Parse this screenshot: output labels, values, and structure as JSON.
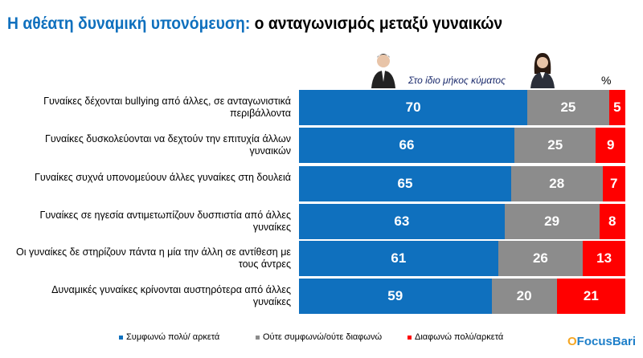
{
  "title": {
    "part1": "Η αθέατη δυναμική υπονόμευση:",
    "part2": "ο ανταγωνισμός μεταξύ γυναικών"
  },
  "subtitle": "Στο ίδιο μήκος κύματος",
  "unit": "%",
  "logo": "FocusBari",
  "chart_data": {
    "type": "bar",
    "orientation": "horizontal",
    "stacked": true,
    "xlim": [
      0,
      100
    ],
    "categories": [
      "Γυναίκες δέχονται bullying από άλλες, σε ανταγωνιστικά περιβάλλοντα",
      "Γυναίκες δυσκολεύονται να δεχτούν την επιτυχία άλλων γυναικών",
      "Γυναίκες συχνά υπονομεύουν άλλες γυναίκες στη δουλειά",
      "Γυναίκες σε ηγεσία αντιμετωπίζουν δυσπιστία από άλλες γυναίκες",
      "Οι γυναίκες δε στηρίζουν πάντα η μία την άλλη σε αντίθεση με τους άντρες",
      "Δυναμικές γυναίκες κρίνονται αυστηρότερα από άλλες γυναίκες"
    ],
    "series": [
      {
        "name": "Συμφωνώ πολύ/ αρκετά",
        "color": "#0f70be",
        "values": [
          70,
          66,
          65,
          63,
          61,
          59
        ]
      },
      {
        "name": "Ούτε συμφωνώ/ούτε διαφωνώ",
        "color": "#8c8c8c",
        "values": [
          25,
          25,
          28,
          29,
          26,
          20
        ]
      },
      {
        "name": "Διαφωνώ πολύ/αρκετά",
        "color": "#ff0000",
        "values": [
          5,
          9,
          7,
          8,
          13,
          21
        ]
      }
    ],
    "legend": "bottom"
  }
}
